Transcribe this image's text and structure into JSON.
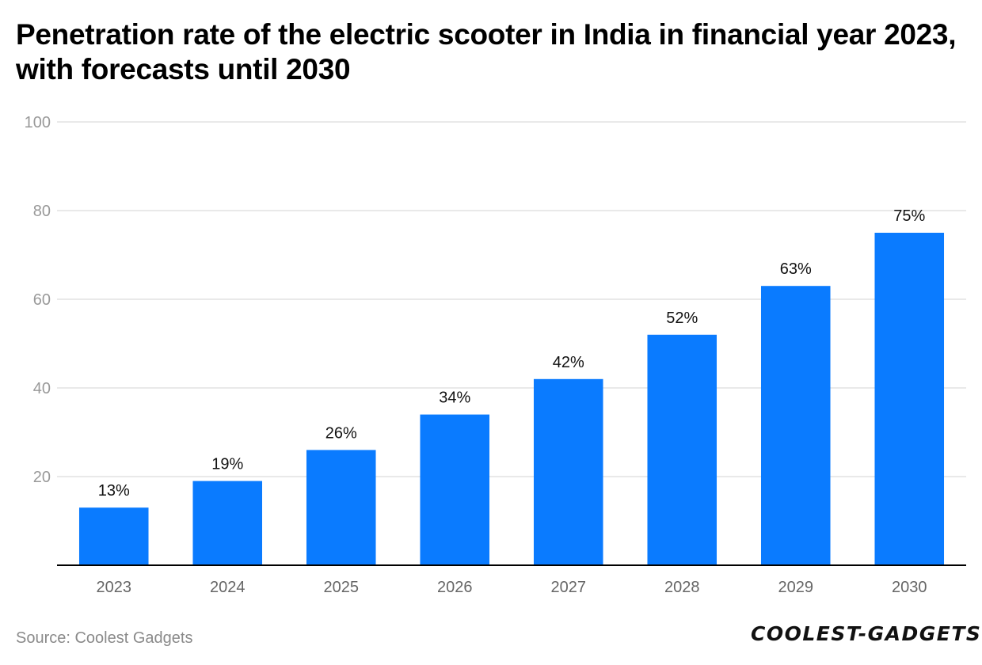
{
  "title": "Penetration rate of the electric scooter in India in financial year 2023, with forecasts until 2030",
  "source": "Source: Coolest Gadgets",
  "brand": "COOLEST-GADGETS",
  "colors": {
    "bar": "#0a7bff",
    "grid": "#e2e2e2",
    "axis": "#000000",
    "tick": "#999999",
    "label": "#111111"
  },
  "chart_data": {
    "type": "bar",
    "title": "Penetration rate of the electric scooter in India in financial year 2023, with forecasts until 2030",
    "categories": [
      "2023",
      "2024",
      "2025",
      "2026",
      "2027",
      "2028",
      "2029",
      "2030"
    ],
    "values": [
      13,
      19,
      26,
      34,
      42,
      52,
      63,
      75
    ],
    "data_labels": [
      "13%",
      "19%",
      "26%",
      "34%",
      "42%",
      "52%",
      "63%",
      "75%"
    ],
    "ylim": [
      0,
      100
    ],
    "yticks": [
      20,
      40,
      60,
      80,
      100
    ],
    "xlabel": "",
    "ylabel": "",
    "grid": true
  }
}
